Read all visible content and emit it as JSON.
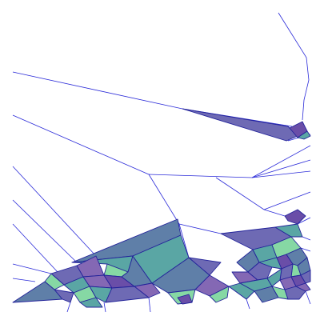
{
  "figure": {
    "background_color": "#ffffff",
    "edge_color": "#2a2ad8",
    "cell_stroke_color": "#23239a"
  },
  "palette": {
    "steel_blue": "#5f7fa8",
    "slate_blue": "#6e6ab4",
    "violet": "#8468b4",
    "teal": "#5aa6a4",
    "mint": "#86d8a4",
    "deep_purple": "#6a4ea8"
  }
}
